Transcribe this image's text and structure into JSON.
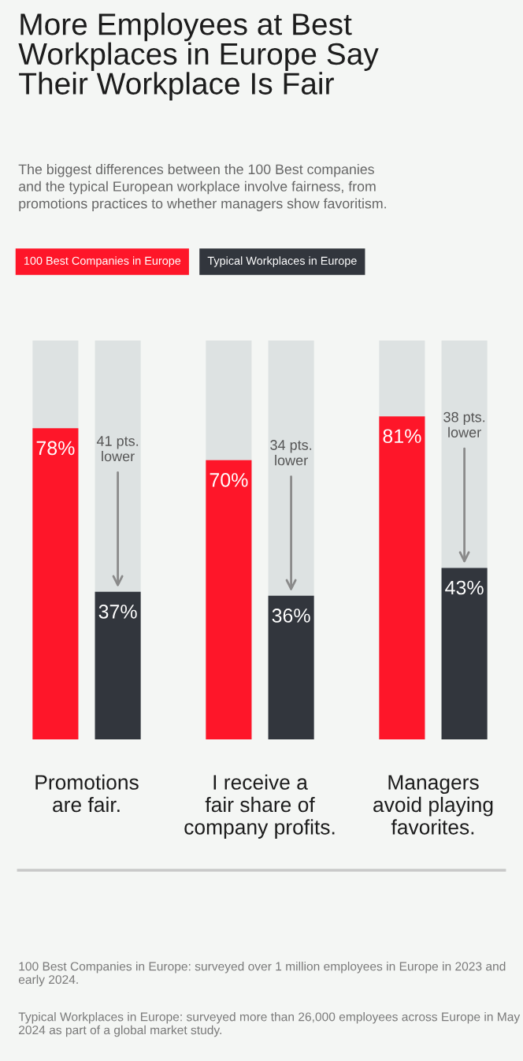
{
  "chart_data": {
    "type": "bar",
    "title": "More Employees at Best\nWorkplaces in Europe Say\nTheir Workplace Is Fair",
    "subtitle": "The biggest differences between the 100 Best companies\nand the typical European workplace involve fairness, from\npromotions practices to whether managers show favoritism.",
    "categories": [
      "Promotions\nare fair.",
      "I receive a\nfair share of\ncompany profits.",
      "Managers\navoid playing\nfavorites."
    ],
    "series": [
      {
        "name": "100 Best Companies in Europe",
        "color": "#fe1629",
        "values": [
          78,
          70,
          81
        ],
        "value_labels": [
          "78%",
          "70%",
          "81%"
        ]
      },
      {
        "name": "Typical Workplaces in Europe",
        "color": "#32363d",
        "values": [
          37,
          36,
          43
        ],
        "value_labels": [
          "37%",
          "36%",
          "43%"
        ]
      }
    ],
    "ylim": [
      0,
      100
    ],
    "tick_labels": "x",
    "grid": false,
    "legend": "top left",
    "annotations": [
      "41 pts.\nlower",
      "34 pts.\nlower",
      "38 pts.\nlower",
      "100 Best Companies in Europe: surveyed over 1 million employees in Europe in 2023 and early 2024.",
      "Typical Workplaces in Europe: surveyed more than 26,000 employees across Europe in May 2024 as part of a global market study."
    ]
  }
}
